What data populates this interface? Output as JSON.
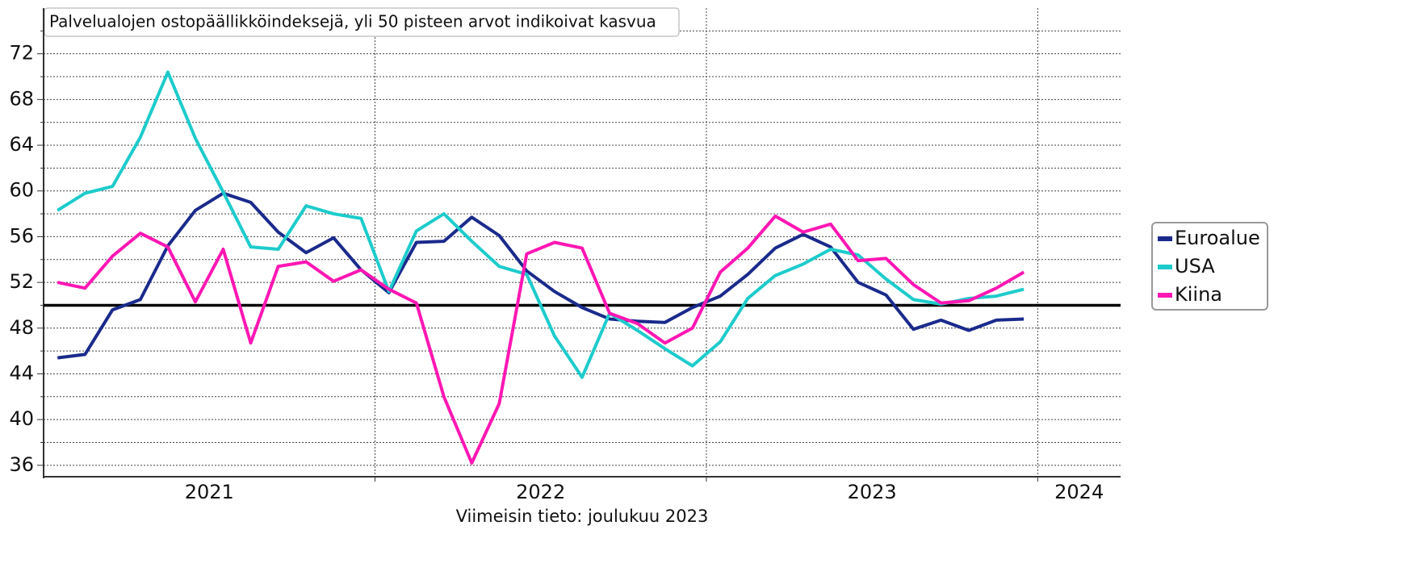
{
  "chart_data": {
    "type": "line",
    "title": "Palvelualojen ostopäällikköindeksejä, yli 50 pisteen arvot indikoivat kasvua",
    "caption": "Viimeisin tieto: joulukuu 2023",
    "x": [
      2021.042,
      2021.125,
      2021.208,
      2021.292,
      2021.375,
      2021.458,
      2021.542,
      2021.625,
      2021.708,
      2021.792,
      2021.875,
      2021.958,
      2022.042,
      2022.125,
      2022.208,
      2022.292,
      2022.375,
      2022.458,
      2022.542,
      2022.625,
      2022.708,
      2022.792,
      2022.875,
      2022.958,
      2023.042,
      2023.125,
      2023.208,
      2023.292,
      2023.375,
      2023.458,
      2023.542,
      2023.625,
      2023.708,
      2023.792,
      2023.875,
      2023.958
    ],
    "series": [
      {
        "name": "Euroalue",
        "color": "#1a2a8c",
        "values": [
          45.4,
          45.7,
          49.6,
          50.5,
          55.2,
          58.3,
          59.8,
          59.0,
          56.4,
          54.6,
          55.9,
          53.1,
          51.1,
          55.5,
          55.6,
          57.7,
          56.1,
          53.0,
          51.2,
          49.8,
          48.8,
          48.6,
          48.5,
          49.8,
          50.8,
          52.7,
          55.0,
          56.2,
          55.1,
          52.0,
          50.9,
          47.9,
          48.7,
          47.8,
          48.7,
          48.8
        ]
      },
      {
        "name": "USA",
        "color": "#1ecbcb",
        "values": [
          58.3,
          59.8,
          60.4,
          64.7,
          70.4,
          64.6,
          59.9,
          55.1,
          54.9,
          58.7,
          58.0,
          57.6,
          51.2,
          56.5,
          58.0,
          55.6,
          53.4,
          52.7,
          47.3,
          43.7,
          49.3,
          47.8,
          46.2,
          44.7,
          46.8,
          50.6,
          52.6,
          53.6,
          54.9,
          54.4,
          52.3,
          50.5,
          50.1,
          50.6,
          50.8,
          51.4
        ]
      },
      {
        "name": "Kiina",
        "color": "#ff17b4",
        "values": [
          52.0,
          51.5,
          54.3,
          56.3,
          55.1,
          50.3,
          54.9,
          46.7,
          53.4,
          53.8,
          52.1,
          53.1,
          51.4,
          50.2,
          42.0,
          36.2,
          41.4,
          54.5,
          55.5,
          55.0,
          49.3,
          48.4,
          46.7,
          48.0,
          52.9,
          55.0,
          57.8,
          56.4,
          57.1,
          53.9,
          54.1,
          51.8,
          50.2,
          50.4,
          51.5,
          52.9
        ]
      }
    ],
    "xlim": [
      2021,
      2024.25
    ],
    "xticks": [
      2022,
      2023,
      2024
    ],
    "x_labels": [
      {
        "value": 2021.5,
        "label": "2021"
      },
      {
        "value": 2022.5,
        "label": "2022"
      },
      {
        "value": 2023.5,
        "label": "2023"
      },
      {
        "value": 2024.125,
        "label": "2024"
      }
    ],
    "ylim": [
      35,
      76
    ],
    "yticks": [
      36,
      40,
      44,
      48,
      52,
      56,
      60,
      64,
      68,
      72
    ],
    "y_minor_ticks": [
      38,
      42,
      46,
      50,
      54,
      58,
      62,
      66,
      70,
      74
    ],
    "reference_line": 50,
    "grid": true,
    "legend": "right"
  }
}
